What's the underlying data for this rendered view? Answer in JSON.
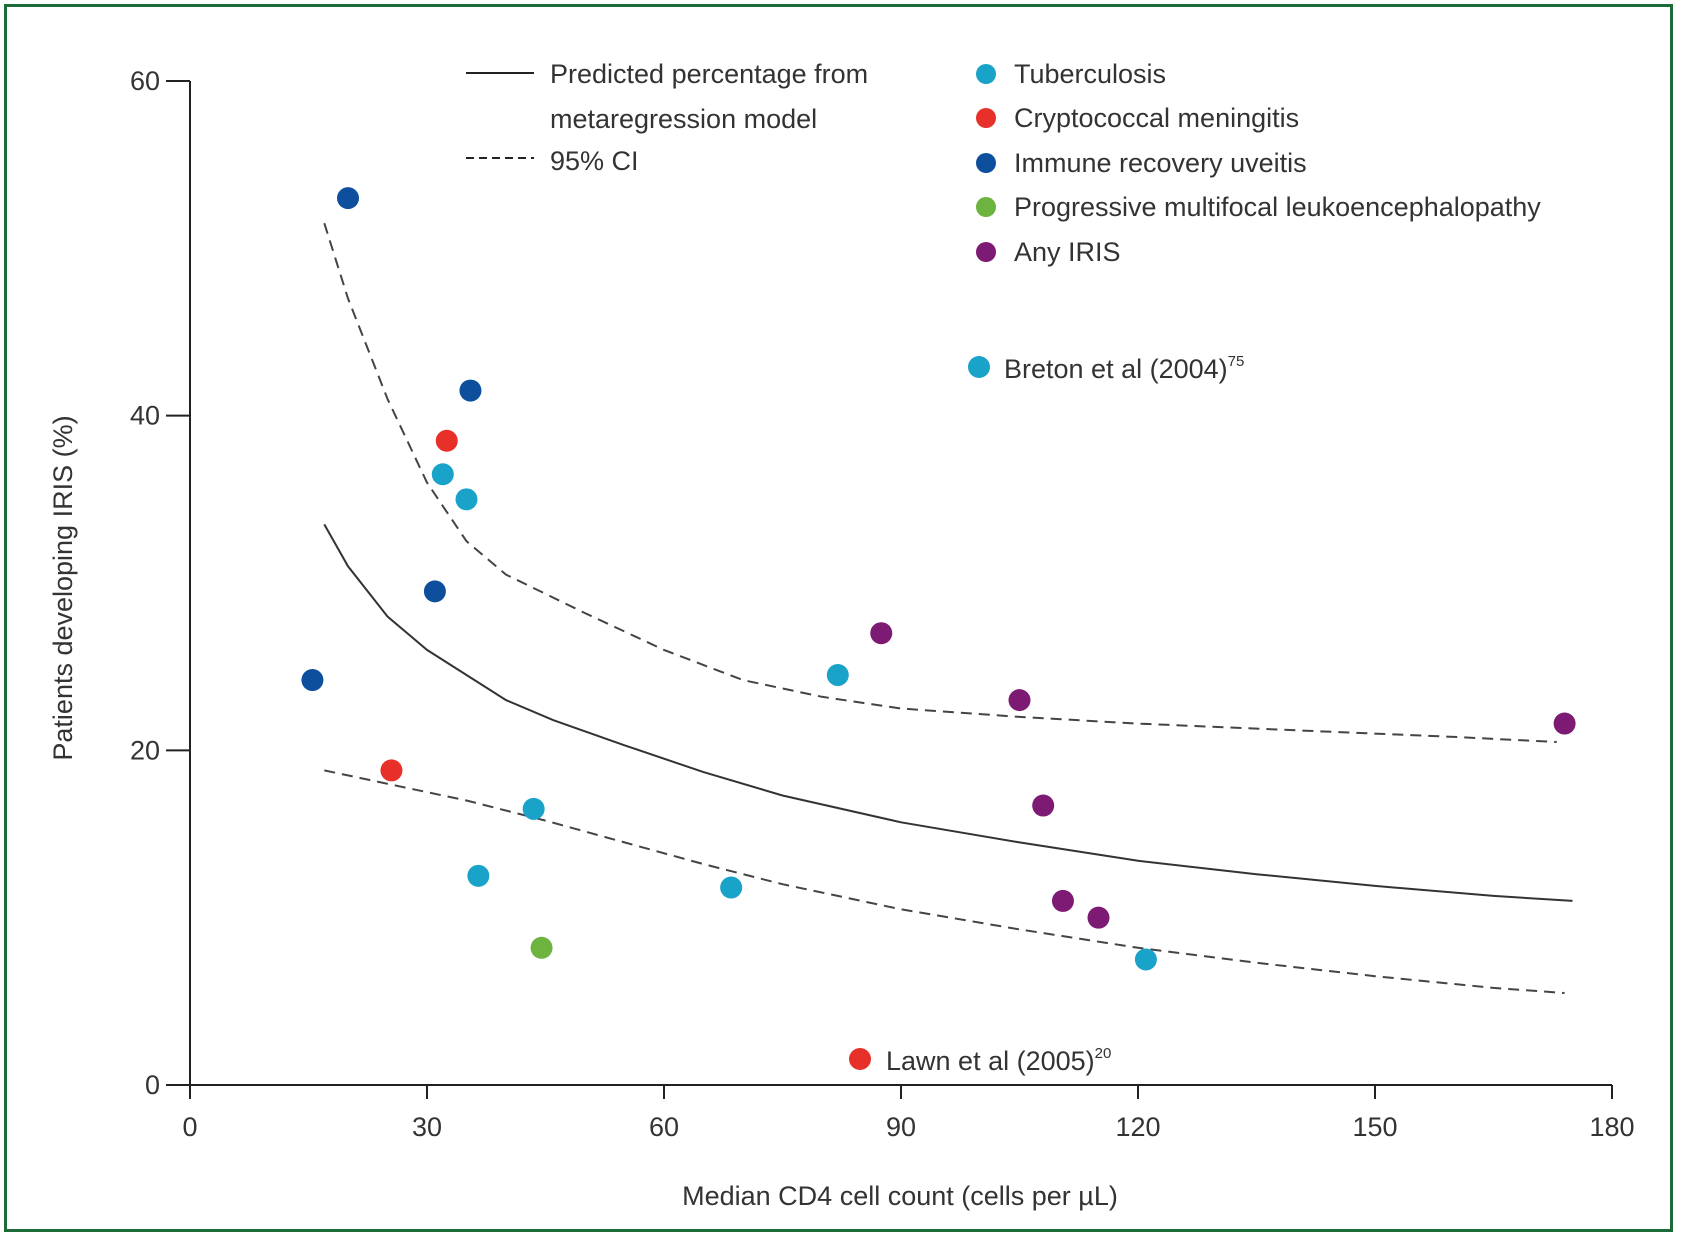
{
  "colors": {
    "frame": "#1e6b3a",
    "axis": "#222222",
    "Tuberculosis": "#19a3c9",
    "Cryptococcal meningitis": "#e8302a",
    "Immune recovery uveitis": "#0d4f9c",
    "Progressive multifocal leukoencephalopathy": "#6cb33f",
    "Any IRIS": "#7d1a73"
  },
  "chart_data": {
    "type": "scatter",
    "xlabel": "Median CD4 cell count (cells per µL)",
    "ylabel": "Patients developing IRIS (%)",
    "xlim": [
      0,
      180
    ],
    "ylim": [
      0,
      60
    ],
    "xticks": [
      "0",
      "30",
      "60",
      "90",
      "120",
      "150",
      "180"
    ],
    "yticks": [
      "0",
      "20",
      "40",
      "60"
    ],
    "grid": false,
    "legend_placement": "top",
    "line_legend": [
      {
        "label_line1": "Predicted percentage from",
        "label_line2": "metaregression model",
        "style": "solid"
      },
      {
        "label_line1": "95% CI",
        "label_line2": "",
        "style": "dashed"
      }
    ],
    "series": [
      {
        "name": "Tuberculosis",
        "points": [
          [
            32,
            36.5
          ],
          [
            35,
            35
          ],
          [
            43.5,
            16.5
          ],
          [
            36.5,
            12.5
          ],
          [
            68.5,
            11.8
          ],
          [
            82,
            24.5
          ],
          [
            121,
            7.5
          ]
        ]
      },
      {
        "name": "Cryptococcal meningitis",
        "points": [
          [
            32.5,
            38.5
          ],
          [
            25.5,
            18.8
          ]
        ]
      },
      {
        "name": "Immune recovery uveitis",
        "points": [
          [
            20,
            53
          ],
          [
            35.5,
            41.5
          ],
          [
            31,
            29.5
          ],
          [
            15.5,
            24.2
          ]
        ]
      },
      {
        "name": "Progressive multifocal leukoencephalopathy",
        "points": [
          [
            44.5,
            8.2
          ]
        ]
      },
      {
        "name": "Any IRIS",
        "points": [
          [
            87.5,
            27
          ],
          [
            105,
            23
          ],
          [
            108,
            16.7
          ],
          [
            110.5,
            11
          ],
          [
            115,
            10
          ],
          [
            174,
            21.6
          ]
        ]
      }
    ],
    "fit_lines": [
      {
        "style": "solid",
        "points": [
          [
            17,
            33.5
          ],
          [
            20,
            31
          ],
          [
            25,
            28
          ],
          [
            30,
            26
          ],
          [
            35,
            24.5
          ],
          [
            40,
            23
          ],
          [
            46,
            21.8
          ],
          [
            55,
            20.3
          ],
          [
            65,
            18.7
          ],
          [
            75,
            17.3
          ],
          [
            90,
            15.7
          ],
          [
            105,
            14.5
          ],
          [
            120,
            13.4
          ],
          [
            135,
            12.6
          ],
          [
            150,
            11.9
          ],
          [
            165,
            11.3
          ],
          [
            175,
            11
          ]
        ]
      },
      {
        "style": "dashed",
        "points": [
          [
            17,
            51.5
          ],
          [
            20,
            47
          ],
          [
            25,
            41
          ],
          [
            30,
            36
          ],
          [
            35,
            32.5
          ],
          [
            40,
            30.5
          ],
          [
            50,
            28.2
          ],
          [
            60,
            26
          ],
          [
            70,
            24.2
          ],
          [
            80,
            23.2
          ],
          [
            90,
            22.5
          ],
          [
            105,
            22
          ],
          [
            120,
            21.6
          ],
          [
            140,
            21.2
          ],
          [
            160,
            20.8
          ],
          [
            173,
            20.5
          ]
        ]
      },
      {
        "style": "dashed",
        "points": [
          [
            17,
            18.8
          ],
          [
            25,
            18
          ],
          [
            35,
            17
          ],
          [
            45,
            15.8
          ],
          [
            55,
            14.5
          ],
          [
            65,
            13.2
          ],
          [
            75,
            12
          ],
          [
            90,
            10.5
          ],
          [
            105,
            9.3
          ],
          [
            120,
            8.2
          ],
          [
            135,
            7.3
          ],
          [
            150,
            6.5
          ],
          [
            165,
            5.8
          ],
          [
            174,
            5.5
          ]
        ]
      }
    ],
    "annotations": [
      {
        "text": "Breton et al (2004)",
        "sup": "75",
        "series": "Tuberculosis"
      },
      {
        "text": "Lawn et al (2005)",
        "sup": "20",
        "series": "Cryptococcal meningitis"
      }
    ]
  }
}
